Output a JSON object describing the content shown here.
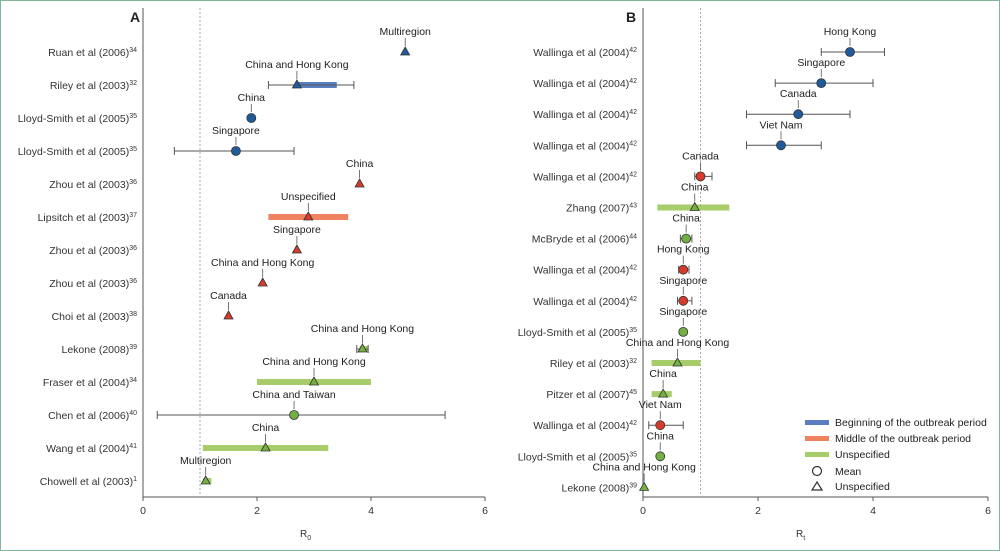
{
  "colors": {
    "beginning": "#5b7ec2",
    "middle": "#f0835f",
    "unspecified": "#a6cd6a",
    "blue_marker": "#1f5a9a",
    "red_marker": "#d63a2b",
    "green_marker": "#72b043",
    "axis": "#555555",
    "ref_line": "#aaaaaa"
  },
  "chart_data": [
    {
      "panel": "A",
      "type": "forest",
      "xlabel": "R0",
      "xlabel_main": "R",
      "xlabel_sub": "0",
      "xlim": [
        0,
        6
      ],
      "xticks": [
        "0",
        "2",
        "4",
        "6"
      ],
      "reference_line": 1,
      "rows": [
        {
          "label": "Ruan et al (2006)",
          "ref": "34",
          "note": "Multiregion",
          "value": 4.6,
          "low": null,
          "high": null,
          "marker": "triangle",
          "color": "blue_marker",
          "period": null
        },
        {
          "label": "Riley et al (2003)",
          "ref": "32",
          "note": "China and Hong Kong",
          "value": 2.7,
          "low": 2.2,
          "high": 3.7,
          "marker": "triangle",
          "color": "blue_marker",
          "period": "beginning",
          "band": [
            2.7,
            3.4
          ]
        },
        {
          "label": "Lloyd-Smith et al (2005)",
          "ref": "35",
          "note": "China",
          "value": 1.9,
          "low": null,
          "high": null,
          "marker": "circle",
          "color": "blue_marker",
          "period": null
        },
        {
          "label": "Lloyd-Smith et al (2005)",
          "ref": "35",
          "note": "Singapore",
          "value": 1.63,
          "low": 0.55,
          "high": 2.65,
          "marker": "circle",
          "color": "blue_marker",
          "period": null
        },
        {
          "label": "Zhou et al (2003)",
          "ref": "36",
          "note": "China",
          "value": 3.8,
          "low": null,
          "high": null,
          "marker": "triangle",
          "color": "red_marker",
          "period": null
        },
        {
          "label": "Lipsitch et al (2003)",
          "ref": "37",
          "note": "Unspecified",
          "value": 2.9,
          "low": null,
          "high": null,
          "marker": "triangle",
          "color": "red_marker",
          "period": "middle",
          "band": [
            2.2,
            3.6
          ]
        },
        {
          "label": "Zhou et al (2003)",
          "ref": "36",
          "note": "Singapore",
          "value": 2.7,
          "low": null,
          "high": null,
          "marker": "triangle",
          "color": "red_marker",
          "period": null
        },
        {
          "label": "Zhou et al (2003)",
          "ref": "36",
          "note": "China and Hong Kong",
          "value": 2.1,
          "low": null,
          "high": null,
          "marker": "triangle",
          "color": "red_marker",
          "period": null
        },
        {
          "label": "Choi et al (2003)",
          "ref": "38",
          "note": "Canada",
          "value": 1.5,
          "low": null,
          "high": null,
          "marker": "triangle",
          "color": "red_marker",
          "period": null
        },
        {
          "label": "Lekone (2008)",
          "ref": "39",
          "note": "China and Hong Kong",
          "value": 3.85,
          "low": 3.75,
          "high": 3.95,
          "marker": "triangle",
          "color": "green_marker",
          "period": "unspecified",
          "band": [
            3.8,
            3.95
          ]
        },
        {
          "label": "Fraser et al (2004)",
          "ref": "34",
          "note": "China and Hong Kong",
          "value": 3.0,
          "low": null,
          "high": null,
          "marker": "triangle",
          "color": "green_marker",
          "period": "unspecified",
          "band": [
            2.0,
            4.0
          ]
        },
        {
          "label": "Chen et al (2006)",
          "ref": "40",
          "note": "China and Taiwan",
          "value": 2.65,
          "low": 0.25,
          "high": 5.3,
          "marker": "circle",
          "color": "green_marker",
          "period": null
        },
        {
          "label": "Wang et al (2004)",
          "ref": "41",
          "note": "China",
          "value": 2.15,
          "low": null,
          "high": null,
          "marker": "triangle",
          "color": "green_marker",
          "period": "unspecified",
          "band": [
            1.05,
            3.25
          ]
        },
        {
          "label": "Chowell et al (2003)",
          "ref": "1",
          "note": "Multiregion",
          "value": 1.1,
          "low": null,
          "high": null,
          "marker": "triangle",
          "color": "green_marker",
          "period": "unspecified",
          "band": [
            1.05,
            1.2
          ]
        }
      ]
    },
    {
      "panel": "B",
      "type": "forest",
      "xlabel": "Rt",
      "xlabel_main": "R",
      "xlabel_sub": "t",
      "xlim": [
        0,
        6
      ],
      "xticks": [
        "0",
        "2",
        "4",
        "6"
      ],
      "reference_line": 1,
      "rows": [
        {
          "label": "Wallinga et al (2004)",
          "ref": "42",
          "note": "Hong Kong",
          "value": 3.6,
          "low": 3.1,
          "high": 4.2,
          "marker": "circle",
          "color": "blue_marker",
          "period": null
        },
        {
          "label": "Wallinga et al (2004)",
          "ref": "42",
          "note": "Singapore",
          "value": 3.1,
          "low": 2.3,
          "high": 4.0,
          "marker": "circle",
          "color": "blue_marker",
          "period": null
        },
        {
          "label": "Wallinga et al (2004)",
          "ref": "42",
          "note": "Canada",
          "value": 2.7,
          "low": 1.8,
          "high": 3.6,
          "marker": "circle",
          "color": "blue_marker",
          "period": null
        },
        {
          "label": "Wallinga et al (2004)",
          "ref": "42",
          "note": "Viet Nam",
          "value": 2.4,
          "low": 1.8,
          "high": 3.1,
          "marker": "circle",
          "color": "blue_marker",
          "period": null
        },
        {
          "label": "Wallinga et al (2004)",
          "ref": "42",
          "note": "Canada",
          "value": 1.0,
          "low": 0.9,
          "high": 1.2,
          "marker": "circle",
          "color": "red_marker",
          "period": null
        },
        {
          "label": "Zhang (2007)",
          "ref": "43",
          "note": "China",
          "value": 0.9,
          "low": null,
          "high": null,
          "marker": "triangle",
          "color": "green_marker",
          "period": "unspecified",
          "band": [
            0.25,
            1.5
          ]
        },
        {
          "label": "McBryde et al (2006)",
          "ref": "44",
          "note": "China",
          "value": 0.75,
          "low": 0.65,
          "high": 0.85,
          "marker": "circle",
          "color": "green_marker",
          "period": null
        },
        {
          "label": "Wallinga et al (2004)",
          "ref": "42",
          "note": "Hong Kong",
          "value": 0.7,
          "low": 0.62,
          "high": 0.8,
          "marker": "circle",
          "color": "red_marker",
          "period": null
        },
        {
          "label": "Wallinga et al (2004)",
          "ref": "42",
          "note": "Singapore",
          "value": 0.7,
          "low": 0.6,
          "high": 0.85,
          "marker": "circle",
          "color": "red_marker",
          "period": null
        },
        {
          "label": "Lloyd-Smith et al (2005)",
          "ref": "35",
          "note": "Singapore",
          "value": 0.7,
          "low": null,
          "high": null,
          "marker": "circle",
          "color": "green_marker",
          "period": null
        },
        {
          "label": "Riley et al (2003)",
          "ref": "32",
          "note": "China and Hong Kong",
          "value": 0.6,
          "low": null,
          "high": null,
          "marker": "triangle",
          "color": "green_marker",
          "period": "unspecified",
          "band": [
            0.15,
            1.0
          ]
        },
        {
          "label": "Pitzer et al (2007)",
          "ref": "45",
          "note": "China",
          "value": 0.35,
          "low": null,
          "high": null,
          "marker": "triangle",
          "color": "green_marker",
          "period": "unspecified",
          "band": [
            0.15,
            0.5
          ]
        },
        {
          "label": "Wallinga et al (2004)",
          "ref": "42",
          "note": "Viet Nam",
          "value": 0.3,
          "low": 0.1,
          "high": 0.7,
          "marker": "circle",
          "color": "red_marker",
          "period": null
        },
        {
          "label": "Lloyd-Smith et al (2005)",
          "ref": "35",
          "note": "China",
          "value": 0.3,
          "low": null,
          "high": null,
          "marker": "circle",
          "color": "green_marker",
          "period": null
        },
        {
          "label": "Lekone (2008)",
          "ref": "39",
          "note": "China and Hong Kong",
          "value": 0.02,
          "low": null,
          "high": null,
          "marker": "triangle",
          "color": "green_marker",
          "period": null
        }
      ],
      "legend": {
        "placement": "bottom-right",
        "periods": [
          {
            "key": "beginning",
            "label": "Beginning of the outbreak period"
          },
          {
            "key": "middle",
            "label": "Middle of the outbreak period"
          },
          {
            "key": "unspecified",
            "label": "Unspecified"
          }
        ],
        "markers": [
          {
            "shape": "circle",
            "label": "Mean"
          },
          {
            "shape": "triangle",
            "label": "Unspecified"
          }
        ]
      }
    }
  ]
}
